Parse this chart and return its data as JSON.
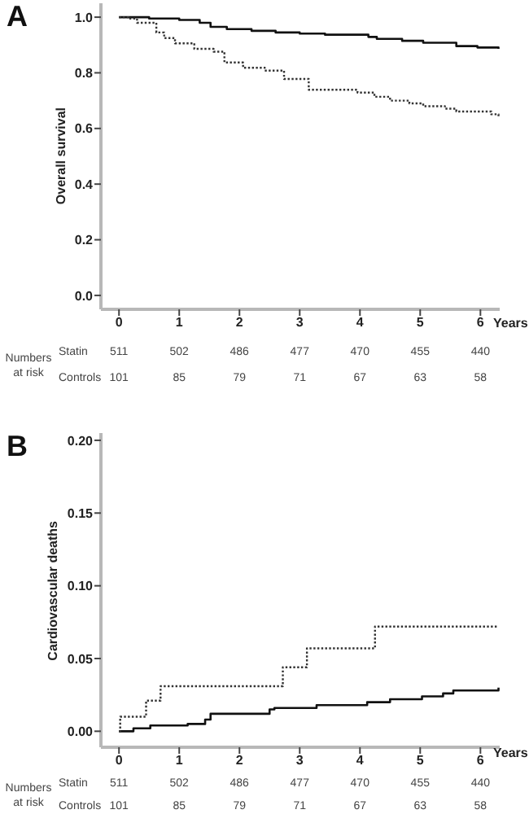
{
  "chart_data": [
    {
      "type": "step",
      "title": "A",
      "xlabel": "Years",
      "ylabel": "Overall survival",
      "xlim": [
        -0.3,
        6.32
      ],
      "xticks": [
        0,
        1,
        2,
        3,
        4,
        5,
        6
      ],
      "ylim": [
        -0.05,
        1.05
      ],
      "yticks": [
        {
          "value": 0,
          "label": "0.0"
        },
        {
          "value": 0.2,
          "label": "0.2"
        },
        {
          "value": 0.4,
          "label": "0.4"
        },
        {
          "value": 0.6,
          "label": "0.6"
        },
        {
          "value": 0.8,
          "label": "0.8"
        },
        {
          "value": 1,
          "label": "1.0"
        }
      ],
      "series": [
        {
          "color": "#111111",
          "line_style": "solid",
          "x": [
            0,
            0.5,
            1.0,
            1.34,
            1.52,
            1.79,
            2.2,
            2.6,
            3.0,
            3.42,
            4.14,
            4.28,
            4.7,
            5.05,
            5.6,
            5.95,
            6.3
          ],
          "values": [
            1.0,
            0.995,
            0.99,
            0.98,
            0.965,
            0.957,
            0.951,
            0.945,
            0.941,
            0.937,
            0.929,
            0.922,
            0.915,
            0.908,
            0.896,
            0.891,
            0.886
          ]
        },
        {
          "color": "#333333",
          "line_style": "dotted",
          "x": [
            0,
            0.16,
            0.3,
            0.62,
            0.75,
            0.93,
            1.25,
            1.57,
            1.75,
            2.06,
            2.42,
            2.74,
            3.15,
            3.96,
            4.24,
            4.5,
            4.82,
            5.05,
            5.41,
            5.6,
            6.18,
            6.3
          ],
          "values": [
            1.0,
            0.995,
            0.98,
            0.945,
            0.925,
            0.906,
            0.886,
            0.876,
            0.837,
            0.818,
            0.808,
            0.778,
            0.739,
            0.729,
            0.714,
            0.7,
            0.69,
            0.68,
            0.671,
            0.661,
            0.651,
            0.637
          ]
        }
      ],
      "annotations": [
        "Numbers at risk",
        "Statin",
        "511",
        "502",
        "486",
        "477",
        "470",
        "455",
        "440",
        "Controls",
        "101",
        "85",
        "79",
        "71",
        "67",
        "63",
        "58"
      ]
    },
    {
      "type": "step",
      "title": "B",
      "xlabel": "Years",
      "ylabel": "Cardiovascular deaths",
      "xlim": [
        -0.3,
        6.32
      ],
      "xticks": [
        0,
        1,
        2,
        3,
        4,
        5,
        6
      ],
      "ylim": [
        -0.011,
        0.205
      ],
      "yticks": [
        {
          "value": 0,
          "label": "0.00"
        },
        {
          "value": 0.05,
          "label": "0.05"
        },
        {
          "value": 0.1,
          "label": "0.10"
        },
        {
          "value": 0.15,
          "label": "0.15"
        },
        {
          "value": 0.2,
          "label": "0.20"
        }
      ],
      "series": [
        {
          "color": "#111111",
          "line_style": "solid",
          "x": [
            0,
            0.24,
            0.52,
            1.14,
            1.43,
            1.52,
            2.5,
            2.58,
            3.28,
            4.12,
            4.5,
            5.03,
            5.38,
            5.55,
            6.3
          ],
          "values": [
            0,
            0.002,
            0.004,
            0.005,
            0.008,
            0.012,
            0.015,
            0.016,
            0.018,
            0.02,
            0.022,
            0.024,
            0.026,
            0.028,
            0.03
          ]
        },
        {
          "color": "#333333",
          "line_style": "dotted",
          "x": [
            0,
            0.02,
            0.45,
            0.69,
            2.72,
            3.12,
            4.25,
            6.3
          ],
          "values": [
            0,
            0.01,
            0.021,
            0.031,
            0.044,
            0.057,
            0.072,
            0.072
          ]
        }
      ],
      "annotations": [
        "Numbers at risk",
        "Statin",
        "511",
        "502",
        "486",
        "477",
        "470",
        "455",
        "440",
        "Controls",
        "101",
        "85",
        "79",
        "71",
        "67",
        "63",
        "58"
      ]
    }
  ]
}
